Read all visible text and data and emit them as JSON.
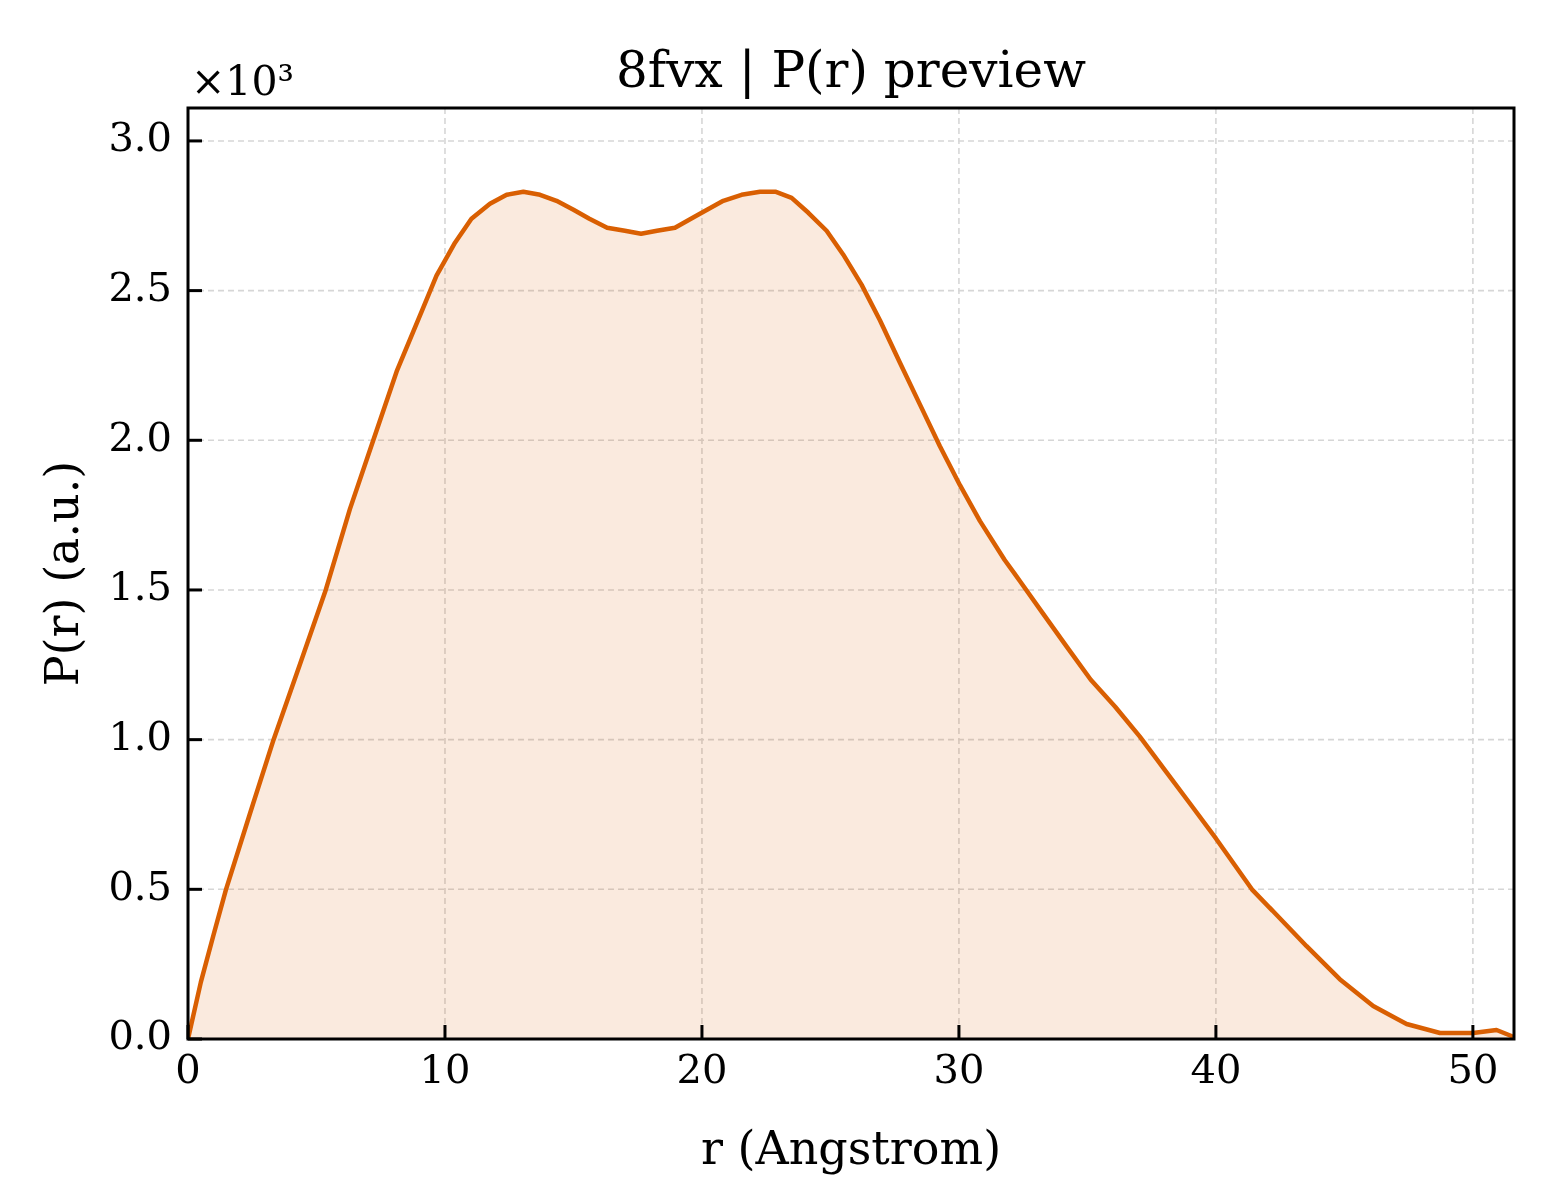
{
  "chart_data": {
    "type": "area",
    "title": "8fvx | P(r) preview",
    "xlabel": "r (Angstrom)",
    "ylabel": "P(r) (a.u.)",
    "annotations": [
      "×10³"
    ],
    "x": [
      0,
      0.5,
      1.0,
      1.48,
      2.4,
      3.33,
      4.35,
      5.36,
      6.3,
      7.21,
      8.12,
      9.09,
      9.67,
      10.39,
      11.03,
      11.75,
      12.4,
      13.05,
      13.7,
      14.34,
      15.0,
      15.62,
      16.31,
      17.0,
      17.63,
      18.25,
      18.95,
      19.78,
      20.83,
      21.54,
      22.26,
      22.88,
      23.49,
      24.14,
      24.85,
      25.5,
      26.21,
      26.93,
      27.7,
      28.48,
      29.26,
      30.04,
      30.82,
      31.78,
      32.37,
      33.28,
      34.2,
      35.13,
      36.08,
      37.04,
      38.0,
      38.96,
      40.0,
      41.4,
      42.3,
      43.53,
      44.82,
      46.12,
      47.42,
      48.72,
      50.01,
      50.92,
      51.5
    ],
    "series": [
      {
        "color": "#d95f02",
        "values": [
          0,
          0.19,
          0.35,
          0.5,
          0.75,
          1.0,
          1.25,
          1.5,
          1.77,
          2.0,
          2.23,
          2.43,
          2.55,
          2.66,
          2.74,
          2.79,
          2.82,
          2.83,
          2.82,
          2.8,
          2.77,
          2.74,
          2.71,
          2.7,
          2.69,
          2.7,
          2.71,
          2.75,
          2.8,
          2.82,
          2.83,
          2.83,
          2.81,
          2.76,
          2.7,
          2.62,
          2.52,
          2.4,
          2.26,
          2.12,
          1.98,
          1.85,
          1.73,
          1.6,
          1.53,
          1.42,
          1.31,
          1.2,
          1.11,
          1.01,
          0.9,
          0.79,
          0.67,
          0.5,
          0.42,
          0.31,
          0.2,
          0.11,
          0.05,
          0.02,
          0.02,
          0.03,
          0.01
        ]
      }
    ],
    "xlim": [
      0,
      51.6
    ],
    "ylim": [
      0,
      3.11
    ],
    "xticks": [
      0,
      10,
      20,
      30,
      40,
      50
    ],
    "yticks": [
      {
        "value": 0,
        "label": "0.0"
      },
      {
        "value": 0.5,
        "label": "0.5"
      },
      {
        "value": 1,
        "label": "1.0"
      },
      {
        "value": 1.5,
        "label": "1.5"
      },
      {
        "value": 2,
        "label": "2.0"
      },
      {
        "value": 2.5,
        "label": "2.5"
      },
      {
        "value": 3,
        "label": "3.0"
      }
    ],
    "grid": true,
    "marker": "none",
    "line_style": "solid"
  }
}
